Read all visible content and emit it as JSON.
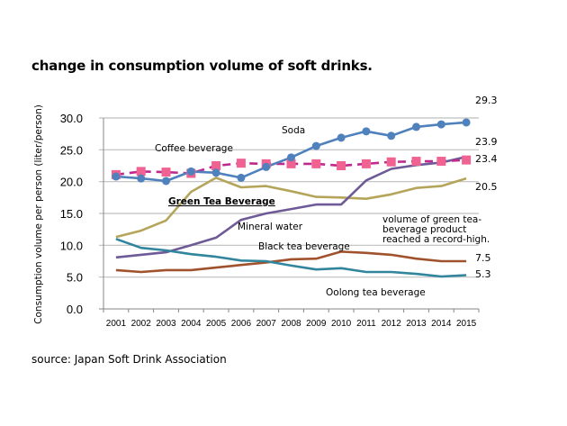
{
  "chart_data": {
    "type": "line",
    "title": "change in consumption volume of soft drinks.",
    "xlabel": "",
    "ylabel": "Consumption volume per person (liter/person)",
    "ylim": [
      0,
      30
    ],
    "yticks": [
      "0.0",
      "5.0",
      "10.0",
      "15.0",
      "20.0",
      "25.0",
      "30.0"
    ],
    "grid": true,
    "x": [
      "2001",
      "2002",
      "2003",
      "2004",
      "2005",
      "2006",
      "2007",
      "2008",
      "2009",
      "2010",
      "2011",
      "2012",
      "2013",
      "2014",
      "2015"
    ],
    "series": [
      {
        "name": "Soda",
        "color": "#4f81bd",
        "marker": "circle",
        "dashed": false,
        "values": [
          20.8,
          20.5,
          20.1,
          21.6,
          21.4,
          20.6,
          22.3,
          23.8,
          25.6,
          26.9,
          27.9,
          27.2,
          28.6,
          29.0,
          29.3
        ]
      },
      {
        "name": "Coffee beverage",
        "color": "#c0288e",
        "marker_color": "#f06292",
        "marker": "square",
        "dashed": true,
        "values": [
          21.1,
          21.6,
          21.5,
          21.3,
          22.5,
          22.9,
          22.8,
          22.8,
          22.8,
          22.5,
          22.8,
          23.1,
          23.2,
          23.2,
          23.4
        ]
      },
      {
        "name": "Green Tea Beverage",
        "color": "#b5a55a",
        "marker": "none",
        "dashed": false,
        "values": [
          11.3,
          12.3,
          13.9,
          18.4,
          20.6,
          19.1,
          19.3,
          18.5,
          17.6,
          17.5,
          17.3,
          18.0,
          19.0,
          19.3,
          20.5
        ]
      },
      {
        "name": "Mineral water",
        "color": "#6e5a96",
        "marker": "none",
        "dashed": false,
        "values": [
          8.1,
          8.5,
          8.9,
          10.0,
          11.2,
          14.0,
          15.0,
          15.7,
          16.4,
          16.4,
          20.2,
          22.0,
          22.6,
          23.0,
          23.9
        ]
      },
      {
        "name": "Black tea beverage",
        "color": "#a0522d",
        "marker": "none",
        "dashed": false,
        "values": [
          6.1,
          5.8,
          6.1,
          6.1,
          6.5,
          6.9,
          7.3,
          7.8,
          7.9,
          9.0,
          8.8,
          8.5,
          7.9,
          7.5,
          7.5
        ]
      },
      {
        "name": "Oolong tea beverage",
        "color": "#31859c",
        "marker": "none",
        "dashed": false,
        "values": [
          11.0,
          9.6,
          9.2,
          8.6,
          8.2,
          7.6,
          7.5,
          6.8,
          6.2,
          6.4,
          5.8,
          5.8,
          5.5,
          5.1,
          5.3
        ]
      }
    ],
    "end_labels": [
      "29.3",
      "23.9",
      "23.4",
      "20.5",
      "7.5",
      "5.3"
    ],
    "annotations": {
      "soda": "Soda",
      "coffee": "Coffee beverage",
      "green_tea": "Green Tea Beverage",
      "mineral": "Mineral water",
      "black_tea": "Black tea beverage",
      "oolong": "Oolong tea beverage",
      "record_line1": "volume of green tea-",
      "record_line2": "beverage product",
      "record_line3": "reached a record-high."
    },
    "legend": "none"
  },
  "source": "source: Japan Soft Drink Association"
}
